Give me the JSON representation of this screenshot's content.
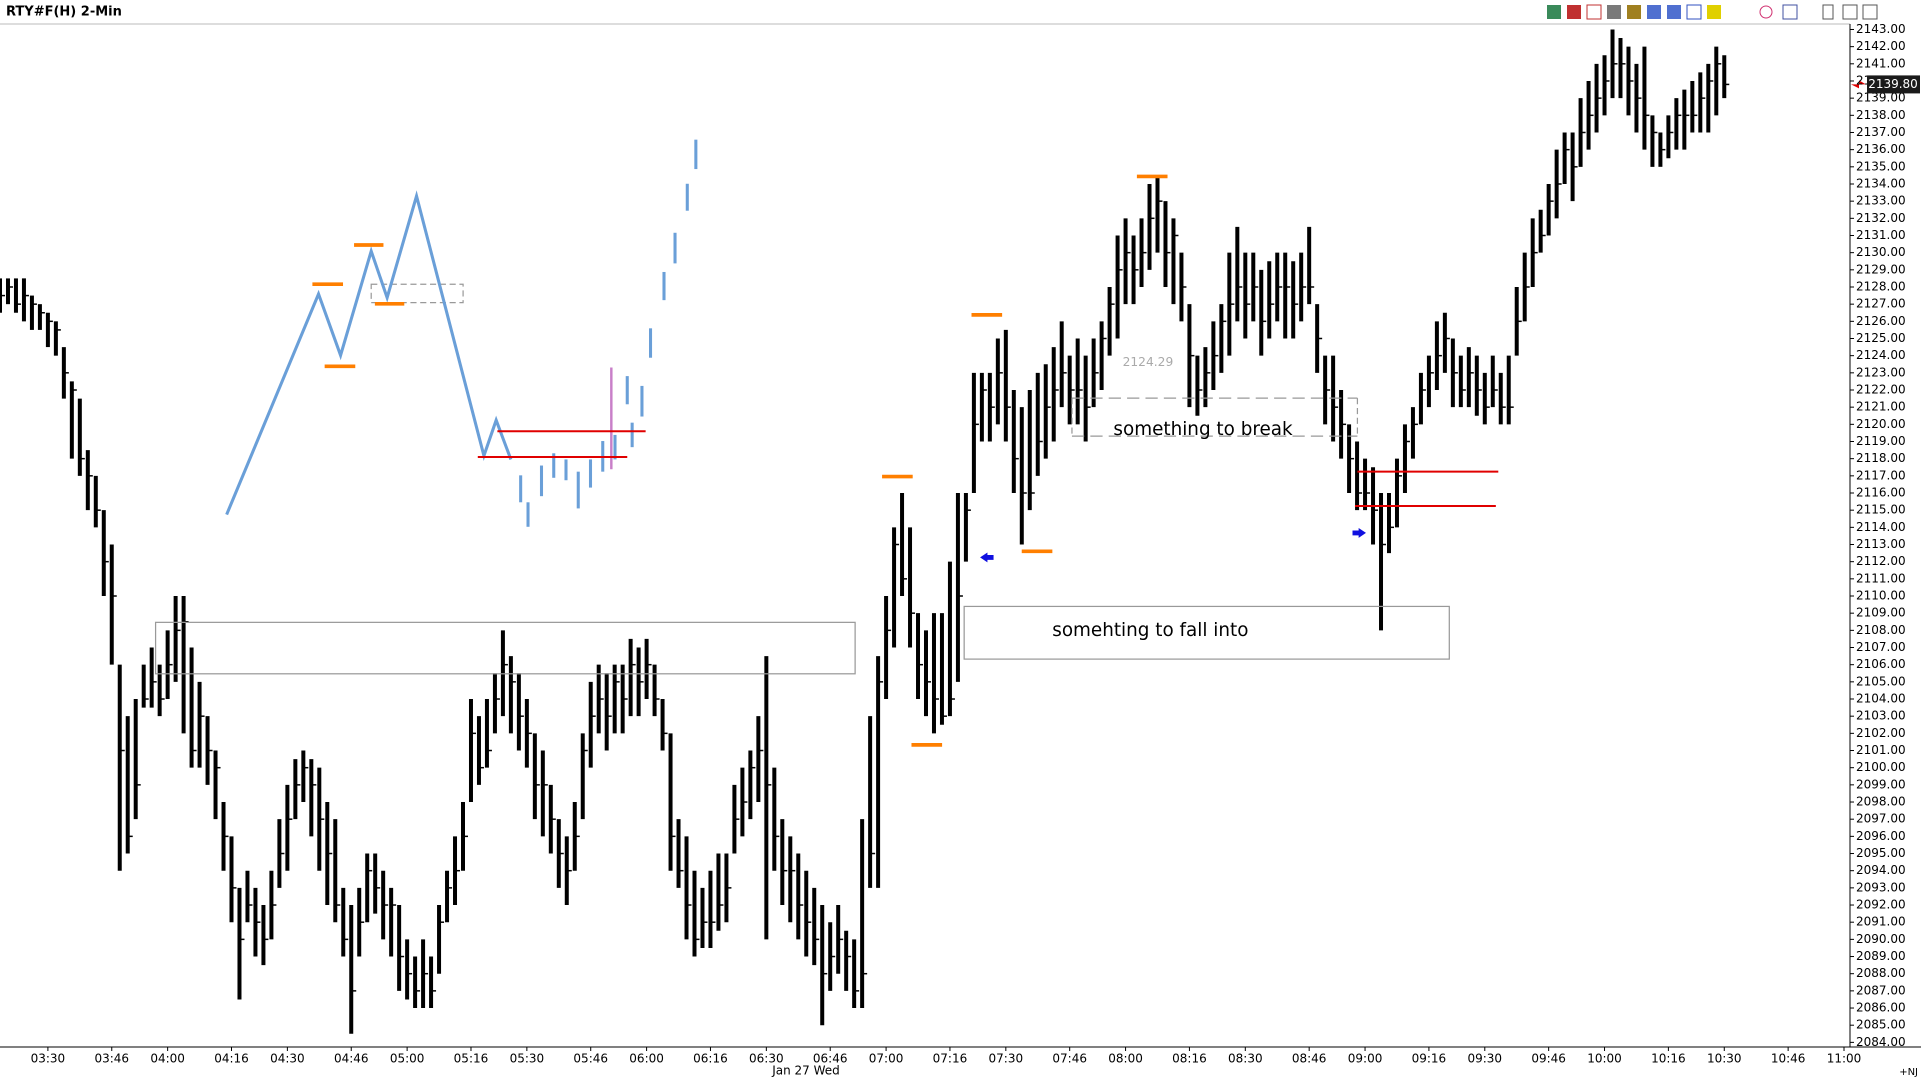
{
  "window_title": "RTY#F(H) 2-Min",
  "chart_data": {
    "type": "hlc-bar",
    "color": "#000000",
    "grid": false,
    "x": [
      198,
      200,
      202,
      204,
      206,
      208,
      210,
      212,
      214,
      216,
      218,
      220,
      222,
      224,
      226,
      228,
      230,
      232,
      234,
      236,
      238,
      240,
      242,
      244,
      246,
      248,
      250,
      252,
      254,
      256,
      258,
      260,
      262,
      264,
      266,
      268,
      270,
      272,
      274,
      276,
      278,
      280,
      282,
      284,
      286,
      288,
      290,
      292,
      294,
      296,
      298,
      300,
      302,
      304,
      306,
      308,
      310,
      312,
      314,
      316,
      318,
      320,
      322,
      324,
      326,
      328,
      330,
      332,
      334,
      336,
      338,
      340,
      342,
      344,
      346,
      348,
      350,
      352,
      354,
      356,
      358,
      360,
      362,
      364,
      366,
      368,
      370,
      372,
      374,
      376,
      378,
      380,
      382,
      384,
      386,
      388,
      390,
      392,
      394,
      396,
      398,
      400,
      402,
      404,
      406,
      408,
      410,
      412,
      414,
      416,
      418,
      420,
      422,
      424,
      426,
      428,
      430,
      432,
      434,
      436,
      438,
      440,
      442,
      444,
      446,
      448,
      450,
      452,
      454,
      456,
      458,
      460,
      462,
      464,
      466,
      468,
      470,
      472,
      474,
      476,
      478,
      480,
      482,
      484,
      486,
      488,
      490,
      492,
      494,
      496,
      498,
      500,
      502,
      504,
      506,
      508,
      510,
      512,
      514,
      516,
      518,
      520,
      522,
      524,
      526,
      528,
      530,
      532,
      534,
      536,
      538,
      540,
      542,
      544,
      546,
      548,
      550,
      552,
      554,
      556,
      558,
      560,
      562,
      564,
      566,
      568,
      570,
      572,
      574,
      576,
      578,
      580,
      582,
      584,
      586,
      588,
      590,
      592,
      594,
      596,
      598,
      600,
      602,
      604,
      606,
      608,
      610,
      612,
      614,
      616,
      618,
      620,
      622,
      624,
      626,
      628,
      630
    ],
    "high": [
      2128.5,
      2128.5,
      2128.5,
      2128.5,
      2127.5,
      2127,
      2126.5,
      2126,
      2124.5,
      2122.5,
      2121.5,
      2118.5,
      2117,
      2115,
      2113,
      2106,
      2103,
      2104,
      2106,
      2107,
      2106,
      2108,
      2110,
      2110,
      2107,
      2105,
      2103,
      2101,
      2098,
      2096,
      2093,
      2094,
      2093,
      2092,
      2094,
      2097,
      2099,
      2100.5,
      2101,
      2100.5,
      2100,
      2098,
      2097,
      2093,
      2092,
      2093,
      2095,
      2095,
      2094,
      2093,
      2092,
      2090,
      2089,
      2090,
      2089,
      2092,
      2094,
      2096,
      2098,
      2104,
      2103,
      2104,
      2105.5,
      2108,
      2106.5,
      2105.5,
      2104,
      2102,
      2101,
      2099,
      2097,
      2096,
      2098,
      2102,
      2105,
      2106,
      2105.5,
      2106,
      2106,
      2107.5,
      2107,
      2107.5,
      2106,
      2104,
      2102,
      2097,
      2096,
      2094,
      2093,
      2094,
      2095,
      2095,
      2099,
      2100,
      2101,
      2103,
      2106.5,
      2100,
      2097,
      2096,
      2095,
      2094,
      2093,
      2092,
      2091,
      2092,
      2090.5,
      2090,
      2097,
      2103,
      2106.5,
      2110,
      2114,
      2116,
      2114,
      2109,
      2108,
      2109,
      2109,
      2112,
      2116,
      2116,
      2123,
      2123,
      2123,
      2125,
      2125.5,
      2122,
      2121,
      2122,
      2123,
      2123.5,
      2124.5,
      2126,
      2124,
      2125,
      2124,
      2125,
      2126,
      2128,
      2131,
      2132,
      2131,
      2132,
      2134,
      2134.5,
      2133,
      2132,
      2130,
      2127,
      2124,
      2124.5,
      2126,
      2127,
      2130,
      2131.5,
      2130,
      2130,
      2129,
      2129.5,
      2130,
      2130,
      2129.5,
      2130,
      2131.5,
      2127,
      2124,
      2124,
      2122,
      2120,
      2119,
      2118,
      2117.5,
      2116,
      2116,
      2118,
      2120,
      2121,
      2123,
      2124,
      2126,
      2126.5,
      2125,
      2124,
      2124.5,
      2124,
      2123,
      2124,
      2123,
      2124,
      2128,
      2130,
      2132,
      2132.5,
      2134,
      2136,
      2137,
      2137,
      2139,
      2140,
      2141,
      2141.5,
      2143,
      2142.5,
      2142,
      2141,
      2142,
      2138,
      2137,
      2138,
      2139,
      2139.5,
      2140,
      2140.5,
      2141,
      2142,
      2141.5
    ],
    "low": [
      2126.5,
      2127,
      2126.5,
      2126,
      2125.5,
      2125.5,
      2124.5,
      2124,
      2121.5,
      2118,
      2117,
      2115,
      2114,
      2110,
      2106,
      2094,
      2095,
      2097,
      2103.5,
      2103.5,
      2103,
      2104,
      2105,
      2102,
      2100,
      2100,
      2099,
      2097,
      2094,
      2091,
      2086.5,
      2091,
      2089,
      2088.5,
      2090,
      2093,
      2094,
      2097,
      2098,
      2096,
      2094,
      2092,
      2091,
      2089,
      2084.5,
      2089,
      2091,
      2091.5,
      2090,
      2089,
      2087,
      2086.5,
      2086,
      2086,
      2086,
      2088,
      2091,
      2092,
      2094,
      2098,
      2099,
      2100,
      2102,
      2103,
      2102,
      2101,
      2100,
      2097,
      2096,
      2095,
      2093,
      2092,
      2094,
      2097,
      2100,
      2102,
      2101,
      2102,
      2102,
      2103,
      2103,
      2104,
      2103,
      2101,
      2094,
      2093,
      2090,
      2089,
      2089.5,
      2089.5,
      2090.5,
      2091,
      2095,
      2096,
      2097,
      2098,
      2090,
      2094,
      2092,
      2091,
      2090,
      2089,
      2088.5,
      2085,
      2087,
      2088,
      2087,
      2086,
      2086,
      2093,
      2093,
      2104,
      2107,
      2110,
      2107,
      2104,
      2103,
      2102,
      2102.5,
      2103,
      2105,
      2112,
      2116,
      2119,
      2119,
      2120,
      2119,
      2116,
      2113,
      2115,
      2117,
      2118,
      2119,
      2121,
      2120,
      2120,
      2119,
      2121,
      2122,
      2124,
      2125,
      2127,
      2127,
      2128,
      2129,
      2130,
      2128,
      2127,
      2126,
      2121,
      2120.5,
      2121,
      2122,
      2123,
      2124,
      2126,
      2125,
      2126,
      2124,
      2125,
      2126,
      2125,
      2125,
      2126,
      2127,
      2123,
      2120,
      2119,
      2118,
      2116,
      2115,
      2115,
      2113,
      2108,
      2112.5,
      2114,
      2116,
      2118,
      2120,
      2121,
      2122,
      2123,
      2121,
      2121,
      2121,
      2120.5,
      2120,
      2121,
      2120,
      2120,
      2124,
      2126,
      2128,
      2130,
      2131,
      2132,
      2134,
      2133,
      2135,
      2136,
      2137,
      2138,
      2139,
      2139,
      2138,
      2137,
      2136,
      2135,
      2135,
      2135.5,
      2136,
      2136,
      2137,
      2137,
      2137,
      2138,
      2139
    ],
    "close": [
      2127.5,
      2128,
      2127,
      2127.5,
      2127,
      2126.5,
      2126,
      2125.5,
      2123,
      2122,
      2118,
      2117,
      2115,
      2112,
      2110,
      2101,
      2096,
      2099,
      2104,
      2105,
      2104,
      2106,
      2108,
      2108.5,
      2101,
      2103,
      2101,
      2100,
      2096,
      2093,
      2090,
      2092,
      2091,
      2090,
      2092,
      2095,
      2097,
      2099,
      2100,
      2099,
      2097,
      2095,
      2092,
      2090,
      2087,
      2091,
      2094,
      2093,
      2092,
      2092,
      2089,
      2088,
      2087,
      2088,
      2087,
      2091,
      2093,
      2094,
      2096,
      2102,
      2100,
      2101,
      2104,
      2106,
      2105,
      2103,
      2102,
      2099,
      2099,
      2097,
      2095,
      2094,
      2096,
      2101,
      2103,
      2104,
      2103,
      2105,
      2104,
      2106,
      2105,
      2106,
      2104,
      2102,
      2096,
      2094,
      2092,
      2090,
      2091,
      2091,
      2092,
      2093,
      2097,
      2098,
      2100,
      2101,
      2099,
      2096,
      2094,
      2094,
      2092,
      2091,
      2090,
      2088,
      2089,
      2090,
      2089,
      2087,
      2088,
      2095,
      2105,
      2108,
      2113,
      2111,
      2109,
      2106,
      2105,
      2104,
      2103,
      2104,
      2110,
      2115,
      2120,
      2122,
      2121,
      2123,
      2121,
      2118,
      2116,
      2116,
      2119,
      2121,
      2122,
      2123,
      2122,
      2122,
      2121,
      2123,
      2125,
      2127,
      2129,
      2130,
      2129,
      2130,
      2132,
      2133,
      2130,
      2131,
      2128,
      2124,
      2122,
      2123,
      2124,
      2126,
      2127,
      2128,
      2127,
      2128,
      2126,
      2127,
      2128,
      2128,
      2127,
      2128,
      2128,
      2125,
      2122,
      2121,
      2120,
      2118,
      2116,
      2116,
      2115,
      2113,
      2114,
      2117,
      2119,
      2120,
      2122,
      2123,
      2124,
      2125,
      2123,
      2122,
      2123,
      2122,
      2121,
      2122,
      2121,
      2121,
      2126,
      2128,
      2130,
      2131,
      2133,
      2134,
      2136,
      2135,
      2137,
      2138,
      2139,
      2140,
      2141,
      2141,
      2140,
      2139,
      2138,
      2137,
      2136,
      2137,
      2138,
      2138,
      2138,
      2139,
      2140,
      2141,
      2139.8
    ],
    "xlim": [
      198,
      661.5
    ],
    "xticks": [
      {
        "value": 210,
        "label": "03:30"
      },
      {
        "value": 226,
        "label": "03:46"
      },
      {
        "value": 240,
        "label": "04:00"
      },
      {
        "value": 256,
        "label": "04:16"
      },
      {
        "value": 270,
        "label": "04:30"
      },
      {
        "value": 286,
        "label": "04:46"
      },
      {
        "value": 300,
        "label": "05:00"
      },
      {
        "value": 316,
        "label": "05:16"
      },
      {
        "value": 330,
        "label": "05:30"
      },
      {
        "value": 346,
        "label": "05:46"
      },
      {
        "value": 360,
        "label": "06:00"
      },
      {
        "value": 376,
        "label": "06:16"
      },
      {
        "value": 390,
        "label": "06:30"
      },
      {
        "value": 406,
        "label": "06:46"
      },
      {
        "value": 420,
        "label": "07:00"
      },
      {
        "value": 436,
        "label": "07:16"
      },
      {
        "value": 450,
        "label": "07:30"
      },
      {
        "value": 466,
        "label": "07:46"
      },
      {
        "value": 480,
        "label": "08:00"
      },
      {
        "value": 496,
        "label": "08:16"
      },
      {
        "value": 510,
        "label": "08:30"
      },
      {
        "value": 526,
        "label": "08:46"
      },
      {
        "value": 540,
        "label": "09:00"
      },
      {
        "value": 556,
        "label": "09:16"
      },
      {
        "value": 570,
        "label": "09:30"
      },
      {
        "value": 586,
        "label": "09:46"
      },
      {
        "value": 600,
        "label": "10:00"
      },
      {
        "value": 616,
        "label": "10:16"
      },
      {
        "value": 630,
        "label": "10:30"
      },
      {
        "value": 646,
        "label": "10:46"
      },
      {
        "value": 660,
        "label": "11:00"
      }
    ],
    "ylim": [
      2083.73,
      2143.29
    ],
    "yticks": [
      {
        "value": 2084,
        "label": "2084.00"
      },
      {
        "value": 2085,
        "label": "2085.00"
      },
      {
        "value": 2086,
        "label": "2086.00"
      },
      {
        "value": 2087,
        "label": "2087.00"
      },
      {
        "value": 2088,
        "label": "2088.00"
      },
      {
        "value": 2089,
        "label": "2089.00"
      },
      {
        "value": 2090,
        "label": "2090.00"
      },
      {
        "value": 2091,
        "label": "2091.00"
      },
      {
        "value": 2092,
        "label": "2092.00"
      },
      {
        "value": 2093,
        "label": "2093.00"
      },
      {
        "value": 2094,
        "label": "2094.00"
      },
      {
        "value": 2095,
        "label": "2095.00"
      },
      {
        "value": 2096,
        "label": "2096.00"
      },
      {
        "value": 2097,
        "label": "2097.00"
      },
      {
        "value": 2098,
        "label": "2098.00"
      },
      {
        "value": 2099,
        "label": "2099.00"
      },
      {
        "value": 2100,
        "label": "2100.00"
      },
      {
        "value": 2101,
        "label": "2101.00"
      },
      {
        "value": 2102,
        "label": "2102.00"
      },
      {
        "value": 2103,
        "label": "2103.00"
      },
      {
        "value": 2104,
        "label": "2104.00"
      },
      {
        "value": 2105,
        "label": "2105.00"
      },
      {
        "value": 2106,
        "label": "2106.00"
      },
      {
        "value": 2107,
        "label": "2107.00"
      },
      {
        "value": 2108,
        "label": "2108.00"
      },
      {
        "value": 2109,
        "label": "2109.00"
      },
      {
        "value": 2110,
        "label": "2110.00"
      },
      {
        "value": 2111,
        "label": "2111.00"
      },
      {
        "value": 2112,
        "label": "2112.00"
      },
      {
        "value": 2113,
        "label": "2113.00"
      },
      {
        "value": 2114,
        "label": "2114.00"
      },
      {
        "value": 2115,
        "label": "2115.00"
      },
      {
        "value": 2116,
        "label": "2116.00"
      },
      {
        "value": 2117,
        "label": "2117.00"
      },
      {
        "value": 2118,
        "label": "2118.00"
      },
      {
        "value": 2119,
        "label": "2119.00"
      },
      {
        "value": 2120,
        "label": "2120.00"
      },
      {
        "value": 2121,
        "label": "2121.00"
      },
      {
        "value": 2122,
        "label": "2122.00"
      },
      {
        "value": 2123,
        "label": "2123.00"
      },
      {
        "value": 2124,
        "label": "2124.00"
      },
      {
        "value": 2125,
        "label": "2125.00"
      },
      {
        "value": 2126,
        "label": "2126.00"
      },
      {
        "value": 2127,
        "label": "2127.00"
      },
      {
        "value": 2128,
        "label": "2128.00"
      },
      {
        "value": 2129,
        "label": "2129.00"
      },
      {
        "value": 2130,
        "label": "2130.00"
      },
      {
        "value": 2131,
        "label": "2131.00"
      },
      {
        "value": 2132,
        "label": "2132.00"
      },
      {
        "value": 2133,
        "label": "2133.00"
      },
      {
        "value": 2134,
        "label": "2134.00"
      },
      {
        "value": 2135,
        "label": "2135.00"
      },
      {
        "value": 2136,
        "label": "2136.00"
      },
      {
        "value": 2137,
        "label": "2137.00"
      },
      {
        "value": 2138,
        "label": "2138.00"
      },
      {
        "value": 2139,
        "label": "2139.00"
      },
      {
        "value": 2140,
        "label": "2140.00"
      },
      {
        "value": 2141,
        "label": "2141.00"
      },
      {
        "value": 2142,
        "label": "2142.00"
      },
      {
        "value": 2143,
        "label": "2143.00"
      }
    ],
    "last_price": {
      "value": 2139.8,
      "label": "2139.80"
    },
    "date_label": "Jan 27 Wed",
    "corner_label": "+NJ",
    "annotations": [
      "2124.29",
      "something to break",
      "somehting to fall into"
    ]
  }
}
